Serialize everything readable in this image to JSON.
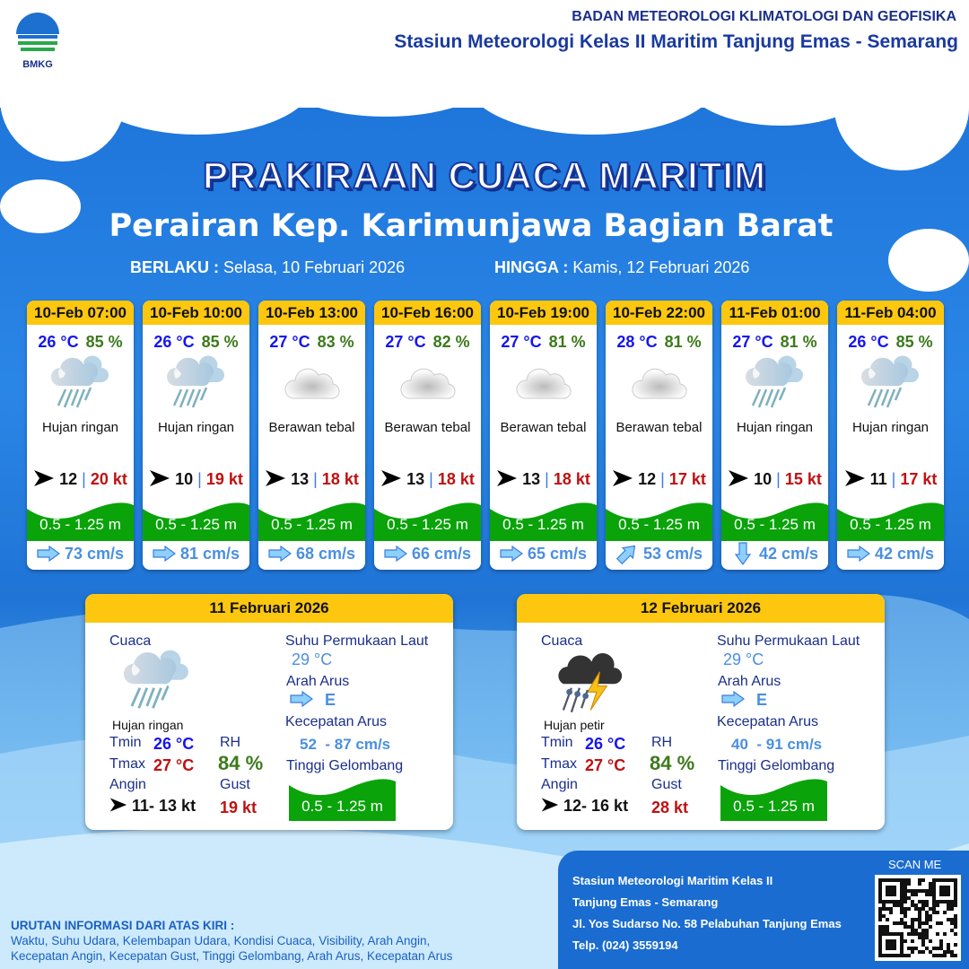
{
  "header": {
    "agency": "BADAN METEOROLOGI KLIMATOLOGI DAN GEOFISIKA",
    "station": "Stasiun Meteorologi Kelas II Maritim Tanjung Emas - Semarang",
    "logo_text": "BMKG"
  },
  "title": "PRAKIRAAN CUACA MARITIM",
  "area": "Perairan Kep. Karimunjawa Bagian Barat",
  "validity": {
    "from_label": "BERLAKU :",
    "from": "Selasa, 10 Februari 2026",
    "to_label": "HINGGA :",
    "to": "Kamis, 12 Februari 2026"
  },
  "colors": {
    "header_yellow": "#fcc70e",
    "wave_green": "#0aa30a",
    "temp_blue": "#1515f0",
    "gust_red": "#c01010",
    "rh_green": "#3c7a1c"
  },
  "forecasts": [
    {
      "time": "10-Feb 07:00",
      "temp": "26 °C",
      "rh": "85 %",
      "icon": "light-rain-icon",
      "cond": "Hujan ringan",
      "wind_dir": "east",
      "wind": "12",
      "sep": "|",
      "gust": "20 kt",
      "wave": "0.5 - 1.25 m",
      "cur_dir": "east",
      "cur": "73 cm/s"
    },
    {
      "time": "10-Feb 10:00",
      "temp": "26 °C",
      "rh": "85 %",
      "icon": "light-rain-icon",
      "cond": "Hujan ringan",
      "wind_dir": "east",
      "wind": "10",
      "sep": "|",
      "gust": "19 kt",
      "wave": "0.5 - 1.25 m",
      "cur_dir": "east",
      "cur": "81 cm/s"
    },
    {
      "time": "10-Feb 13:00",
      "temp": "27 °C",
      "rh": "83 %",
      "icon": "overcast-icon",
      "cond": "Berawan tebal",
      "wind_dir": "east",
      "wind": "13",
      "sep": "|",
      "gust": "18 kt",
      "wave": "0.5 - 1.25 m",
      "cur_dir": "east",
      "cur": "68 cm/s"
    },
    {
      "time": "10-Feb 16:00",
      "temp": "27 °C",
      "rh": "82 %",
      "icon": "overcast-icon",
      "cond": "Berawan tebal",
      "wind_dir": "east",
      "wind": "13",
      "sep": "|",
      "gust": "18 kt",
      "wave": "0.5 - 1.25 m",
      "cur_dir": "east",
      "cur": "66 cm/s"
    },
    {
      "time": "10-Feb 19:00",
      "temp": "27 °C",
      "rh": "81 %",
      "icon": "overcast-icon",
      "cond": "Berawan tebal",
      "wind_dir": "east",
      "wind": "13",
      "sep": "|",
      "gust": "18 kt",
      "wave": "0.5 - 1.25 m",
      "cur_dir": "east",
      "cur": "65 cm/s"
    },
    {
      "time": "10-Feb 22:00",
      "temp": "28 °C",
      "rh": "81 %",
      "icon": "overcast-icon",
      "cond": "Berawan tebal",
      "wind_dir": "east",
      "wind": "12",
      "sep": "|",
      "gust": "17 kt",
      "wave": "0.5 - 1.25 m",
      "cur_dir": "northeast",
      "cur": "53 cm/s"
    },
    {
      "time": "11-Feb 01:00",
      "temp": "27 °C",
      "rh": "81 %",
      "icon": "light-rain-icon",
      "cond": "Hujan ringan",
      "wind_dir": "east",
      "wind": "10",
      "sep": "|",
      "gust": "15 kt",
      "wave": "0.5 - 1.25 m",
      "cur_dir": "south",
      "cur": "42 cm/s"
    },
    {
      "time": "11-Feb 04:00",
      "temp": "26 °C",
      "rh": "85 %",
      "icon": "light-rain-icon",
      "cond": "Hujan ringan",
      "wind_dir": "east",
      "wind": "11",
      "sep": "|",
      "gust": "17 kt",
      "wave": "0.5 - 1.25 m",
      "cur_dir": "east",
      "cur": "42 cm/s"
    }
  ],
  "labels": {
    "cuaca": "Cuaca",
    "tmin": "Tmin",
    "tmax": "Tmax",
    "angin": "Angin",
    "rh": "RH",
    "gust": "Gust",
    "sst": "Suhu Permukaan Laut",
    "arah": "Arah Arus",
    "kec": "Kecepatan Arus",
    "tinggi": "Tinggi Gelombang"
  },
  "daily": [
    {
      "date": "11 Februari 2026",
      "icon": "light-rain-icon",
      "cond": "Hujan ringan",
      "tmin": "26 °C",
      "tmax": "27 °C",
      "rh": "84 %",
      "wind": "11- 13 kt",
      "gust": "19 kt",
      "sst": "29 °C",
      "cur_dir": "E",
      "cur": "52  - 87 cm/s",
      "wave": "0.5 - 1.25 m"
    },
    {
      "date": "12 Februari 2026",
      "icon": "thunderstorm-icon",
      "cond": "Hujan petir",
      "tmin": "26 °C",
      "tmax": "27 °C",
      "rh": "84 %",
      "wind": "12- 16 kt",
      "gust": "28 kt",
      "sst": "29 °C",
      "cur_dir": "E",
      "cur": "40  - 91 cm/s",
      "wave": "0.5 - 1.25 m"
    }
  ],
  "note": {
    "title": "URUTAN INFORMASI DARI ATAS KIRI :",
    "line1": "Waktu, Suhu Udara, Kelembapan Udara, Kondisi Cuaca, Visibility, Arah Angin,",
    "line2": "Kecepatan Angin, Kecepatan Gust, Tinggi Gelombang, Arah Arus, Kecepatan Arus"
  },
  "footer": {
    "l1": "Stasiun Meteorologi Maritim Kelas II",
    "l2": "Tanjung Emas - Semarang",
    "l3": "Jl. Yos Sudarso No. 58 Pelabuhan Tanjung Emas",
    "l4": "Telp. (024) 3559194",
    "scan": "SCAN ME"
  }
}
